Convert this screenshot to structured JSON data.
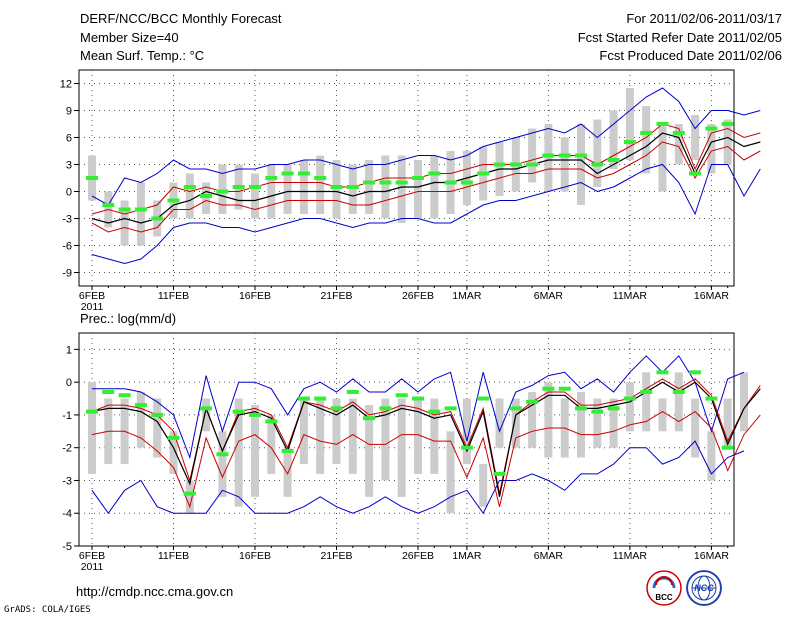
{
  "header": {
    "title": "DERF/NCC/BCC Monthly Forecast",
    "member": "Member Size=40",
    "variable1": "Mean Surf. Temp.: °C",
    "period": "For 2011/02/06-2011/03/17",
    "started": "Fcst Started Refer Date 2011/02/05",
    "produced": "Fcst Produced Date 2011/02/06"
  },
  "footer": {
    "url": "http://cmdp.ncc.cma.gov.cn",
    "grads": "GrADS: COLA/IGES"
  },
  "logos": {
    "bcc": "BCC",
    "ncc": "NCC"
  },
  "colors": {
    "green": "#33ee33",
    "gray": "#cccccc",
    "blue": "#0000cc",
    "red": "#cc0000",
    "black": "#000000"
  },
  "chart_data": [
    {
      "type": "line",
      "title": "Mean Surf. Temp.: °C",
      "x_labels": [
        {
          "label": "6FEB",
          "day": 0,
          "sub": "2011"
        },
        {
          "label": "11FEB",
          "day": 5
        },
        {
          "label": "16FEB",
          "day": 10
        },
        {
          "label": "21FEB",
          "day": 15
        },
        {
          "label": "26FEB",
          "day": 20
        },
        {
          "label": "1MAR",
          "day": 23
        },
        {
          "label": "6MAR",
          "day": 28
        },
        {
          "label": "11MAR",
          "day": 33
        },
        {
          "label": "16MAR",
          "day": 38
        }
      ],
      "y_ticks": [
        12,
        9,
        6,
        3,
        0,
        -3,
        -6,
        -9
      ],
      "ylim": [
        -10.5,
        13.5
      ],
      "series": {
        "gray_bar_high": [
          4,
          0,
          -1,
          1,
          -1,
          1,
          2,
          1,
          3,
          3,
          2,
          3,
          3,
          3.5,
          4,
          3.5,
          3,
          3.5,
          4,
          4,
          3.5,
          4,
          4.5,
          4.5,
          5,
          5.5,
          6,
          7,
          7.5,
          6,
          7.5,
          8,
          9,
          11.5,
          9.5,
          7.5,
          7.5,
          8.5,
          7.5,
          8
        ],
        "gray_bar_low": [
          -1,
          -4,
          -6,
          -6,
          -5,
          -3,
          -3,
          -2.5,
          -2.5,
          -2,
          -3,
          -3,
          -2.5,
          -2.5,
          -2.5,
          -3,
          -2.5,
          -2.5,
          -3,
          -3.5,
          -3,
          -3,
          -2.5,
          -1.5,
          -1,
          -0.5,
          0,
          1,
          0,
          0,
          -1.5,
          0.5,
          2.5,
          3.5,
          2,
          0,
          3,
          3.5,
          2,
          3
        ],
        "green_member": [
          1.5,
          -1.5,
          -2,
          -2,
          -3,
          -1,
          0.5,
          -0.5,
          0,
          0.5,
          0.5,
          1.5,
          2,
          2,
          1.5,
          0.5,
          0.5,
          1,
          1,
          1,
          1.5,
          2,
          1,
          1,
          2,
          3,
          3,
          3,
          4,
          4,
          4,
          3,
          3.5,
          5.5,
          6.5,
          7.5,
          6.5,
          2,
          7,
          7.5,
          6,
          6
        ],
        "blue_max": [
          -7,
          -7.5,
          -8,
          -7.5,
          -6,
          -4,
          -3.5,
          -3.5,
          -4,
          -4,
          -4.5,
          -4,
          -3.5,
          -3,
          -3,
          -3.5,
          -4,
          -3.5,
          -3.5,
          -3,
          -3,
          -3.5,
          -3.5,
          -2.5,
          -1.5,
          -1,
          -1,
          -0.5,
          0,
          0.5,
          1,
          0,
          0.5,
          1.5,
          2.5,
          3,
          1,
          -2.5,
          3,
          3,
          -0.5,
          2.5
        ],
        "blue_top": [
          -0.5,
          -1.5,
          1.5,
          1,
          2,
          3.5,
          2.5,
          2.5,
          2,
          2.5,
          2.5,
          3,
          3,
          3.5,
          3.5,
          3,
          2.5,
          3,
          3,
          3.5,
          4,
          4,
          3.5,
          4,
          5,
          5.5,
          6,
          6.5,
          7,
          6.5,
          7.5,
          6,
          7.5,
          9,
          10.5,
          11.5,
          10,
          7,
          9,
          9,
          8.5,
          9
        ],
        "red_upper": [
          -2.5,
          -2,
          -2.5,
          -2,
          -1.5,
          0.5,
          0,
          0.5,
          0,
          0,
          0.5,
          1,
          1,
          1,
          1,
          0.5,
          0.5,
          1,
          1.5,
          1.5,
          1.5,
          2,
          2,
          2.5,
          3,
          3,
          3,
          3.5,
          4,
          4,
          4,
          3,
          4,
          5,
          6,
          7.5,
          7,
          2.5,
          6.5,
          7,
          6,
          6.5
        ],
        "black_mean": [
          -3,
          -3.5,
          -3,
          -3.5,
          -3,
          -1.5,
          -1,
          0,
          -0.5,
          -1,
          -1,
          -0.5,
          0,
          0,
          0,
          0,
          -0.5,
          0,
          0,
          0.5,
          0.5,
          1,
          1,
          1.5,
          2,
          2.5,
          2.5,
          3,
          3.5,
          3.5,
          3.5,
          2,
          3,
          4,
          5,
          6.5,
          6,
          2,
          5.5,
          6,
          5,
          5.5
        ],
        "red_lower": [
          -3.5,
          -4.5,
          -4,
          -4.5,
          -4,
          -2,
          -2,
          -1,
          -1.5,
          -1.5,
          -2,
          -1.5,
          -1,
          -1,
          -1,
          -1,
          -1.5,
          -1.5,
          -1,
          -0.5,
          0,
          0,
          0,
          0.5,
          1,
          1.5,
          2,
          2,
          2.5,
          2.5,
          2.5,
          1.5,
          2,
          3,
          4,
          5.5,
          5,
          1.5,
          4.5,
          5,
          3.5,
          4.5
        ]
      }
    },
    {
      "type": "line",
      "title": "Prec.: log(mm/d)",
      "x_labels": [
        {
          "label": "6FEB",
          "day": 0,
          "sub": "2011"
        },
        {
          "label": "11FEB",
          "day": 5
        },
        {
          "label": "16FEB",
          "day": 10
        },
        {
          "label": "21FEB",
          "day": 15
        },
        {
          "label": "26FEB",
          "day": 20
        },
        {
          "label": "1MAR",
          "day": 23
        },
        {
          "label": "6MAR",
          "day": 28
        },
        {
          "label": "11MAR",
          "day": 33
        },
        {
          "label": "16MAR",
          "day": 38
        }
      ],
      "y_ticks": [
        1,
        0,
        -1,
        -2,
        -3,
        -4,
        -5
      ],
      "ylim": [
        -5,
        1.5
      ],
      "series": {
        "gray_bar_high": [
          0,
          -0.5,
          -0.5,
          -0.3,
          -0.5,
          -1.5,
          -3,
          -0.5,
          -1.5,
          -0.5,
          -0.7,
          -1,
          -2,
          -0.5,
          -0.5,
          -0.5,
          -0.5,
          -0.7,
          -0.5,
          -0.5,
          -0.5,
          -0.5,
          -1.5,
          -0.5,
          -2.5,
          -0.5,
          -0.5,
          -0.3,
          0,
          -0.5,
          -0.3,
          -0.5,
          -0.5,
          0,
          0.3,
          -0.5,
          0.3,
          -0.5,
          -1.5,
          -0.5,
          0.3
        ],
        "gray_bar_low": [
          -2.8,
          -2.5,
          -2.5,
          -2,
          -2.3,
          -2.8,
          -4,
          -1.5,
          -3.5,
          -3.8,
          -3.5,
          -2.8,
          -3.5,
          -2.5,
          -2.8,
          -2.5,
          -2.8,
          -3.5,
          -3,
          -3.5,
          -2.8,
          -2.8,
          -4,
          -2.5,
          -3.8,
          -2,
          -2,
          -2,
          -2.3,
          -2.3,
          -2.3,
          -2,
          -2,
          -1.5,
          -1.5,
          -1.5,
          -1.5,
          -2.3,
          -3,
          -2,
          -1.5
        ],
        "green_member": [
          -0.9,
          -0.3,
          -0.4,
          -0.7,
          -1,
          -1.7,
          -3.4,
          -0.8,
          -2.2,
          -0.9,
          -1,
          -1.2,
          -2.1,
          -0.5,
          -0.5,
          -0.8,
          -0.3,
          -1.1,
          -0.8,
          -0.4,
          -0.5,
          -0.9,
          -0.8,
          -2,
          -0.5,
          -2.8,
          -0.8,
          -0.6,
          -0.2,
          -0.2,
          -0.8,
          -0.9,
          -0.8,
          -0.5,
          -0.3,
          0.3,
          -0.3,
          0.3,
          -0.5,
          -2,
          -0.7,
          -0.1
        ],
        "blue_max": [
          -3.3,
          -4,
          -3.3,
          -3,
          -3.8,
          -4,
          -4,
          -4,
          -3.3,
          -3.5,
          -4,
          -4,
          -4,
          -3.8,
          -3.5,
          -3.8,
          -4,
          -3.8,
          -3.5,
          -3.8,
          -4,
          -3.8,
          -3.5,
          -3.3,
          -4,
          -3,
          -3,
          -2.8,
          -3,
          -3.3,
          -2.8,
          -2.8,
          -2.5,
          -2,
          -2,
          -2.5,
          -2.3,
          -1.8,
          -2.8,
          -2.3,
          -2.1
        ],
        "blue_top": [
          -0.2,
          -0.2,
          -0.2,
          -0.3,
          -0.6,
          -1,
          -2.3,
          0.2,
          -1.5,
          0,
          0,
          -0.2,
          -1,
          -0.2,
          0,
          -0.3,
          0.1,
          -0.3,
          -0.3,
          0.1,
          -0.3,
          0.1,
          0.3,
          -1.8,
          0.3,
          -1.5,
          -0.3,
          -0.1,
          0.2,
          0.3,
          -0.2,
          0.1,
          -0.3,
          0.3,
          0.8,
          0.3,
          0.8,
          0,
          -1.5,
          0.1,
          0.3
        ],
        "red_upper": [
          -0.9,
          -0.7,
          -0.7,
          -0.8,
          -1,
          -1.5,
          -3,
          -0.8,
          -2.1,
          -0.9,
          -0.8,
          -1,
          -2,
          -0.6,
          -0.7,
          -0.9,
          -0.6,
          -1,
          -0.9,
          -0.7,
          -0.8,
          -1,
          -0.9,
          -2,
          -0.8,
          -3.4,
          -1,
          -0.6,
          -0.3,
          -0.3,
          -0.7,
          -0.7,
          -0.6,
          -0.5,
          -0.2,
          0.1,
          -0.2,
          0.1,
          -0.4,
          -1.8,
          -0.8,
          -0.1
        ],
        "black_mean": [
          -0.9,
          -0.8,
          -0.8,
          -0.9,
          -1.2,
          -2,
          -3.1,
          -0.8,
          -2.1,
          -1,
          -0.9,
          -1.1,
          -2.1,
          -0.6,
          -0.8,
          -1,
          -0.7,
          -1.1,
          -1,
          -0.8,
          -0.9,
          -1.1,
          -1,
          -2.1,
          -0.9,
          -3.5,
          -1,
          -0.7,
          -0.4,
          -0.4,
          -0.8,
          -0.8,
          -0.7,
          -0.6,
          -0.3,
          0,
          -0.3,
          0,
          -0.5,
          -1.9,
          -0.8,
          -0.2
        ],
        "red_lower": [
          -1.6,
          -1.5,
          -1.5,
          -1.7,
          -2.1,
          -2.6,
          -3.8,
          -1.7,
          -2.9,
          -1.8,
          -1.6,
          -2,
          -2.8,
          -1.6,
          -1.8,
          -1.9,
          -1.6,
          -1.9,
          -1.9,
          -1.6,
          -1.6,
          -1.8,
          -1.8,
          -2.9,
          -1.7,
          -3.8,
          -1.7,
          -1.5,
          -1.4,
          -1.4,
          -1.6,
          -1.6,
          -1.5,
          -1.3,
          -1.2,
          -0.9,
          -1.2,
          -0.9,
          -1.4,
          -2.7,
          -1.6,
          -1
        ]
      }
    }
  ]
}
